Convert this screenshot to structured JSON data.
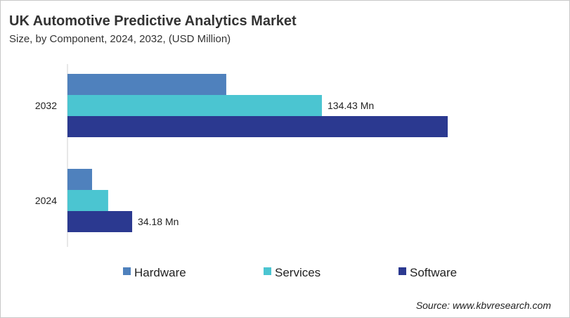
{
  "chart_data": {
    "type": "bar",
    "orientation": "horizontal",
    "title": "UK Automotive Predictive Analytics Market",
    "subtitle": "Size, by Component, 2024, 2032, (USD Million)",
    "categories": [
      "2032",
      "2024"
    ],
    "series": [
      {
        "name": "Hardware",
        "color": "#4f81bd",
        "values": [
          83.9,
          13.0
        ]
      },
      {
        "name": "Services",
        "color": "#4bc5d1",
        "values": [
          134.43,
          21.5
        ]
      },
      {
        "name": "Software",
        "color": "#2b3990",
        "values": [
          200.9,
          34.18
        ]
      }
    ],
    "data_labels": [
      {
        "category": "2032",
        "series": "Services",
        "text": "134.43 Mn"
      },
      {
        "category": "2024",
        "series": "Software",
        "text": "34.18 Mn"
      }
    ],
    "xlim": [
      0,
      210
    ],
    "grid": false,
    "legend_placement": "bottom",
    "source": "Source: www.kbvresearch.com"
  }
}
